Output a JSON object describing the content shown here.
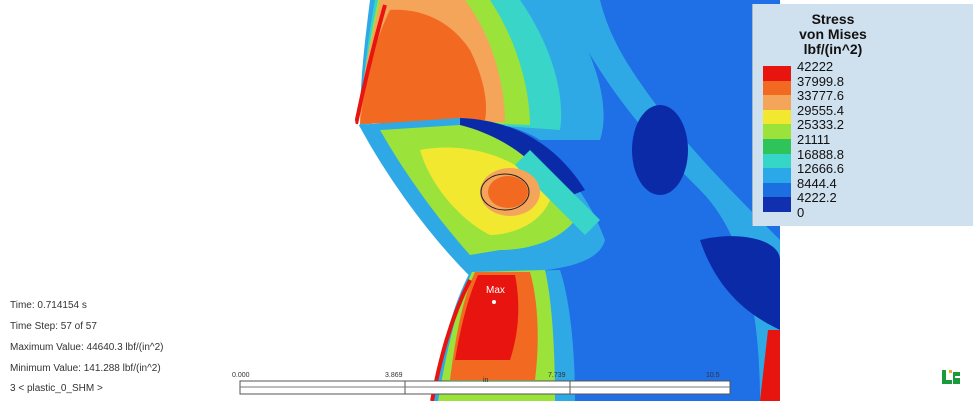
{
  "legend": {
    "title_lines": [
      "Stress",
      "von Mises",
      "lbf/(in^2)"
    ],
    "values": [
      "42222",
      "37999.8",
      "33777.6",
      "29555.4",
      "25333.2",
      "21111",
      "16888.8",
      "12666.6",
      "8444.4",
      "4222.2",
      "0"
    ],
    "colors": [
      "#e8140f",
      "#f26a22",
      "#f5a55a",
      "#f2e830",
      "#9be23a",
      "#2ec45a",
      "#35d6c8",
      "#2aa8e8",
      "#1b6fe0",
      "#1030b0"
    ]
  },
  "info": {
    "time": "Time: 0.714154 s",
    "time_step": "Time Step: 57 of 57",
    "max_value": "Maximum Value: 44640.3 lbf/(in^2)",
    "min_value": "Minimum Value: 141.288 lbf/(in^2)",
    "result_set": "3 < plastic_0_SHM >"
  },
  "probe": {
    "label": "Max"
  },
  "scale_bar": {
    "labels": [
      "0.000",
      "3.869",
      "in",
      "7.739",
      "10.5"
    ]
  },
  "colors": {
    "bg_blue": "#1f6fe6",
    "light_blue": "#2fa9e6",
    "cyan": "#38d5c8",
    "dark_blue": "#0b2aa8",
    "red": "#e8140f",
    "orange": "#f26a22",
    "light_orange": "#f5a55a",
    "yellow": "#f2e830",
    "green": "#2ec45a",
    "light_green": "#9be23a"
  },
  "logo": {
    "icon": "ansys-logo-icon"
  }
}
